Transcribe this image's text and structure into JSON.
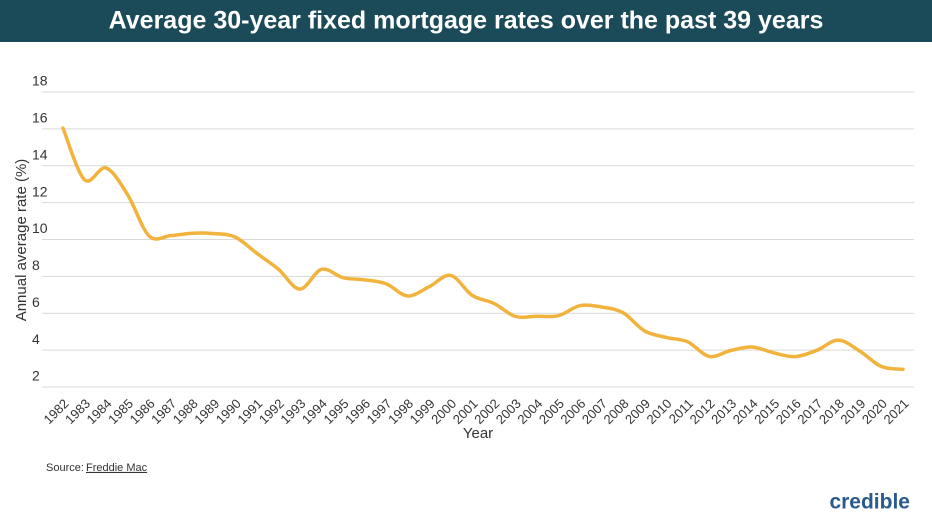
{
  "chart_data": {
    "type": "line",
    "title": "Average 30-year fixed mortgage rates over the past 39 years",
    "x_label": "Year",
    "y_label": "Annual average rate (%)",
    "categories": [
      "1982",
      "1983",
      "1984",
      "1985",
      "1986",
      "1987",
      "1988",
      "1989",
      "1990",
      "1991",
      "1992",
      "1993",
      "1994",
      "1995",
      "1996",
      "1997",
      "1998",
      "1999",
      "2000",
      "2001",
      "2002",
      "2003",
      "2004",
      "2005",
      "2006",
      "2007",
      "2008",
      "2009",
      "2010",
      "2011",
      "2012",
      "2013",
      "2014",
      "2015",
      "2016",
      "2017",
      "2018",
      "2019",
      "2020",
      "2021"
    ],
    "series": [
      {
        "name": "30-year fixed rate",
        "color": "#f2b33d",
        "values": [
          16.04,
          13.24,
          13.88,
          12.43,
          10.19,
          10.21,
          10.34,
          10.32,
          10.13,
          9.25,
          8.39,
          7.31,
          8.38,
          7.93,
          7.81,
          7.6,
          6.94,
          7.44,
          8.05,
          6.97,
          6.54,
          5.83,
          5.84,
          5.87,
          6.41,
          6.34,
          6.03,
          5.04,
          4.69,
          4.45,
          3.66,
          3.98,
          4.17,
          3.85,
          3.65,
          3.99,
          4.54,
          3.94,
          3.11,
          2.96
        ]
      }
    ],
    "ylim": [
      2,
      18
    ],
    "yticks": [
      2,
      4,
      6,
      8,
      10,
      12,
      14,
      16,
      18
    ],
    "grid": true,
    "source_label": "Source:",
    "source_name": "Freddie Mac",
    "brand": "credible"
  }
}
